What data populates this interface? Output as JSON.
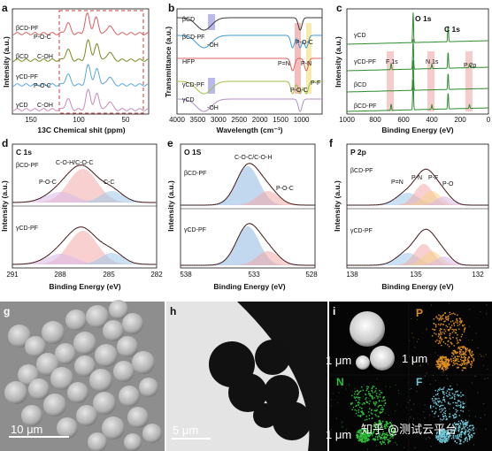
{
  "panels": {
    "a": {
      "letter": "a",
      "xlabel": "13C Chemical shit (ppm)",
      "ylabel": "Intensity (a.u.)",
      "ticks": [
        "150",
        "100",
        "50"
      ],
      "labels": [
        "βCD-PF",
        "P-O-C",
        "βCD",
        "C-OH",
        "γCD-PF",
        "P-O-C",
        "γCD",
        "C-OH"
      ]
    },
    "b": {
      "letter": "b",
      "xlabel": "Wavelength (cm⁻¹)",
      "ylabel": "Transmittance (a.u.)",
      "ticks": [
        "4000",
        "3500",
        "3000",
        "2500",
        "2000",
        "1500",
        "1000"
      ],
      "labels": [
        "βCD",
        "βCD-PF",
        "-OH",
        "HFP",
        "γCD-PF",
        "γCD",
        "-OH",
        "P=N",
        "P-O-C",
        "P-N",
        "P-F",
        "P-O-C"
      ]
    },
    "c": {
      "letter": "c",
      "xlabel": "Binding Energy (eV)",
      "ylabel": "Intensity (a.u.)",
      "ticks": [
        "1000",
        "800",
        "600",
        "400",
        "200",
        "0"
      ],
      "labels": [
        "γCD",
        "γCD-PF",
        "βCD",
        "βCD-PF",
        "F 1s",
        "O 1s",
        "N 1s",
        "C 1s",
        "P 2p"
      ]
    },
    "d": {
      "letter": "d",
      "title": "C 1s",
      "xlabel": "Binding Energy (eV)",
      "ylabel": "Intensity (a.u.)",
      "ticks": [
        "291",
        "288",
        "285",
        "282"
      ],
      "labels": [
        "βCD-PF",
        "C-O-H/C-O-C",
        "P-O-C",
        "C-C",
        "γCD-PF"
      ]
    },
    "e": {
      "letter": "e",
      "title": "O 1S",
      "xlabel": "Binding Energy (eV)",
      "ylabel": "Intensity (a.u.)",
      "ticks": [
        "538",
        "533",
        "528"
      ],
      "labels": [
        "βCD-PF",
        "C-O-C/C-O-H",
        "P-O-C",
        "γCD-PF"
      ]
    },
    "f": {
      "letter": "f",
      "title": "P 2p",
      "xlabel": "Binding Energy (eV)",
      "ylabel": "Intensity (a.u.)",
      "ticks": [
        "138",
        "135",
        "132"
      ],
      "labels": [
        "βCD-PF",
        "P=N",
        "P-N",
        "P-F",
        "P-O",
        "γCD-PF"
      ]
    },
    "g": {
      "letter": "g",
      "scale": "10 μm"
    },
    "h": {
      "letter": "h",
      "scale": "5 μm"
    },
    "i": {
      "letter": "i",
      "scale_a": "1 μm",
      "scale_b": "1 μm",
      "scale_c": "1 μm",
      "element_p": "P",
      "element_n": "N",
      "element_f": "F",
      "watermark": "知乎 @测试云平台",
      "colors": {
        "p": "#e0901a",
        "n": "#2fc23a",
        "f": "#6fc8d8"
      }
    }
  },
  "chart_data": [
    {
      "type": "line",
      "panel": "a",
      "xlim": [
        160,
        20
      ],
      "x_reversed": true,
      "series": [
        {
          "name": "βCD-PF",
          "peaks": [
            103,
            83,
            74,
            60
          ]
        },
        {
          "name": "βCD",
          "peaks": [
            103,
            82,
            73,
            60
          ]
        },
        {
          "name": "γCD-PF",
          "peaks": [
            103,
            82,
            73,
            60
          ]
        },
        {
          "name": "γCD",
          "peaks": [
            103,
            82,
            73,
            60
          ]
        }
      ]
    },
    {
      "type": "line",
      "panel": "b",
      "xlim": [
        4000,
        500
      ],
      "x_reversed": true,
      "series": [
        {
          "name": "βCD",
          "dips": [
            3350,
            1030
          ]
        },
        {
          "name": "βCD-PF",
          "dips": [
            3350,
            1210,
            1030,
            880
          ]
        },
        {
          "name": "HFP",
          "dips": [
            1210,
            880
          ]
        },
        {
          "name": "γCD-PF",
          "dips": [
            3350,
            1210,
            1030,
            880
          ]
        },
        {
          "name": "γCD",
          "dips": [
            3350,
            1030
          ]
        }
      ]
    },
    {
      "type": "line",
      "panel": "c",
      "xlim": [
        1000,
        0
      ],
      "x_reversed": true,
      "series": [
        {
          "name": "γCD",
          "peaks": [
            532,
            285
          ]
        },
        {
          "name": "γCD-PF",
          "peaks": [
            687,
            532,
            400,
            285,
            134
          ]
        },
        {
          "name": "βCD",
          "peaks": [
            532,
            285
          ]
        },
        {
          "name": "βCD-PF",
          "peaks": [
            687,
            532,
            400,
            285,
            134
          ]
        }
      ]
    },
    {
      "type": "area",
      "panel": "d",
      "xlim": [
        291,
        282
      ],
      "x_reversed": true,
      "series": [
        {
          "name": "βCD-PF",
          "components": [
            {
              "label": "C-O-H/C-O-C",
              "center": 286.6
            },
            {
              "label": "P-O-C",
              "center": 288.0
            },
            {
              "label": "C-C",
              "center": 284.8
            }
          ]
        },
        {
          "name": "γCD-PF",
          "components": [
            {
              "label": "C-O-H/C-O-C",
              "center": 286.6
            },
            {
              "label": "P-O-C",
              "center": 288.0
            },
            {
              "label": "C-C",
              "center": 284.8
            }
          ]
        }
      ]
    },
    {
      "type": "area",
      "panel": "e",
      "xlim": [
        538,
        528
      ],
      "x_reversed": true,
      "series": [
        {
          "name": "βCD-PF",
          "components": [
            {
              "label": "C-O-C/C-O-H",
              "center": 533.0
            },
            {
              "label": "P-O-C",
              "center": 531.5
            }
          ]
        },
        {
          "name": "γCD-PF",
          "components": [
            {
              "label": "C-O-C/C-O-H",
              "center": 533.0
            },
            {
              "label": "P-O-C",
              "center": 531.5
            }
          ]
        }
      ]
    },
    {
      "type": "area",
      "panel": "f",
      "xlim": [
        138,
        131
      ],
      "x_reversed": true,
      "series": [
        {
          "name": "βCD-PF",
          "components": [
            {
              "label": "P=N",
              "center": 135.0
            },
            {
              "label": "P-N",
              "center": 134.2
            },
            {
              "label": "P-F",
              "center": 133.8
            },
            {
              "label": "P-O",
              "center": 133.2
            }
          ]
        },
        {
          "name": "γCD-PF",
          "components": [
            {
              "label": "P=N",
              "center": 135.0
            },
            {
              "label": "P-N",
              "center": 134.2
            },
            {
              "label": "P-F",
              "center": 133.8
            },
            {
              "label": "P-O",
              "center": 133.2
            }
          ]
        }
      ]
    }
  ]
}
